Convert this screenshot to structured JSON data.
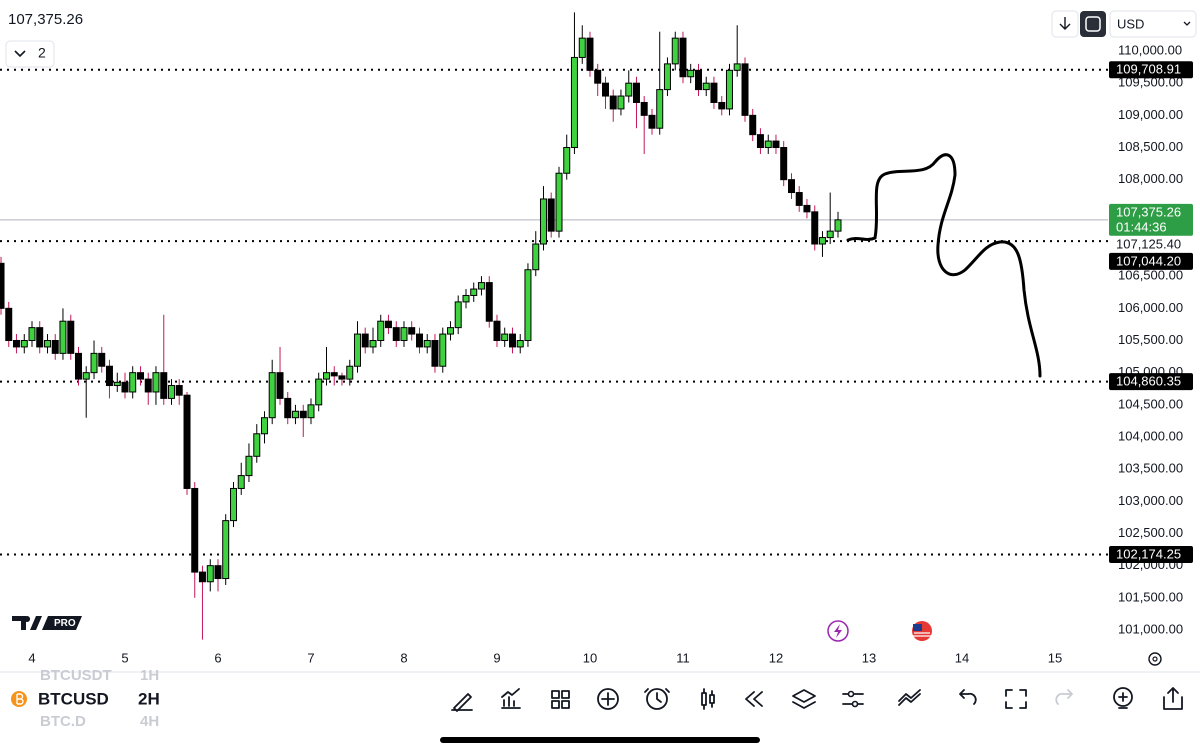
{
  "header": {
    "price": "107,375.26",
    "indicator_count": "2",
    "currency": "USD"
  },
  "logo": {
    "badge": "PRO"
  },
  "toolbar": {
    "symbol": "BTCUSD",
    "interval": "2H",
    "prev_symbol": "BTCUSDT",
    "prev_interval": "1H",
    "next_symbol": "BTC.D",
    "next_interval": "4H"
  },
  "chart_data": {
    "type": "candlestick",
    "x": [
      3.667,
      3.75,
      3.833,
      3.917,
      4,
      4.083,
      4.167,
      4.25,
      4.333,
      4.417,
      4.5,
      4.583,
      4.667,
      4.75,
      4.833,
      4.917,
      5,
      5.083,
      5.167,
      5.25,
      5.333,
      5.417,
      5.5,
      5.583,
      5.667,
      5.75,
      5.833,
      5.917,
      6,
      6.083,
      6.167,
      6.25,
      6.333,
      6.417,
      6.5,
      6.583,
      6.667,
      6.75,
      6.833,
      6.917,
      7,
      7.083,
      7.167,
      7.25,
      7.333,
      7.417,
      7.5,
      7.583,
      7.667,
      7.75,
      7.833,
      7.917,
      8,
      8.083,
      8.167,
      8.25,
      8.333,
      8.417,
      8.5,
      8.583,
      8.667,
      8.75,
      8.833,
      8.917,
      9,
      9.083,
      9.167,
      9.25,
      9.333,
      9.417,
      9.5,
      9.583,
      9.667,
      9.75,
      9.833,
      9.917,
      10,
      10.083,
      10.167,
      10.25,
      10.333,
      10.417,
      10.5,
      10.583,
      10.667,
      10.75,
      10.833,
      10.917,
      11,
      11.083,
      11.167,
      11.25,
      11.333,
      11.417,
      11.5,
      11.583,
      11.667,
      11.75,
      11.833,
      11.917,
      12,
      12.083,
      12.167,
      12.25,
      12.333,
      12.417,
      12.5,
      12.583,
      12.667
    ],
    "open": [
      106700,
      106000,
      105500,
      105400,
      105500,
      105700,
      105400,
      105500,
      105300,
      105800,
      105300,
      104900,
      105000,
      105300,
      105100,
      104800,
      104850,
      104700,
      105000,
      104900,
      104700,
      105000,
      104600,
      104800,
      104650,
      103200,
      101900,
      101750,
      102000,
      101800,
      102700,
      103200,
      103400,
      103700,
      104050,
      104300,
      105000,
      104600,
      104300,
      104400,
      104300,
      104500,
      104900,
      105000,
      104950,
      104900,
      105100,
      105600,
      105400,
      105500,
      105800,
      105700,
      105500,
      105700,
      105600,
      105400,
      105500,
      105100,
      105600,
      105700,
      106100,
      106200,
      106300,
      106400,
      105800,
      105500,
      105600,
      105400,
      105500,
      106600,
      107000,
      107700,
      107200,
      108100,
      108500,
      109900,
      110200,
      109700,
      109500,
      109300,
      109100,
      109300,
      109500,
      109200,
      109000,
      108800,
      109400,
      109800,
      110200,
      109600,
      109700,
      109400,
      109500,
      109200,
      109100,
      109700,
      109800,
      109000,
      108700,
      108500,
      108600,
      108500,
      108000,
      107800,
      107600,
      107500,
      107000,
      107100,
      107200
    ],
    "high": [
      106800,
      106100,
      105600,
      105600,
      105800,
      105800,
      105600,
      105600,
      106000,
      105900,
      105400,
      105100,
      105500,
      105400,
      105200,
      105000,
      105000,
      105100,
      105100,
      105000,
      105100,
      105900,
      104900,
      104900,
      104700,
      103300,
      102000,
      102100,
      102100,
      102800,
      103300,
      103600,
      103900,
      104200,
      104400,
      105200,
      105400,
      104700,
      104500,
      104500,
      104600,
      105000,
      105400,
      105100,
      105000,
      105200,
      105800,
      105700,
      105700,
      105900,
      105900,
      105800,
      105800,
      105800,
      105700,
      105600,
      105600,
      105700,
      105800,
      106200,
      106300,
      106400,
      106500,
      106500,
      105900,
      105700,
      105700,
      105600,
      106700,
      107200,
      107900,
      107800,
      108200,
      108700,
      110600,
      110400,
      110300,
      109800,
      109600,
      109400,
      109400,
      109700,
      109600,
      109300,
      109100,
      110300,
      109900,
      110300,
      110300,
      109800,
      109800,
      109600,
      109600,
      109300,
      109800,
      110400,
      109900,
      109100,
      108800,
      108700,
      108700,
      108600,
      108100,
      107900,
      107700,
      107600,
      107200,
      107800,
      107500
    ],
    "low": [
      105900,
      105400,
      105300,
      105300,
      105400,
      105300,
      105300,
      105200,
      105200,
      105200,
      104800,
      104300,
      104900,
      105000,
      104600,
      104700,
      104600,
      104600,
      104800,
      104500,
      104500,
      104500,
      104500,
      104500,
      103100,
      101500,
      100850,
      101600,
      101600,
      101700,
      102600,
      103100,
      103300,
      103600,
      103900,
      104200,
      104500,
      104200,
      104200,
      104000,
      104200,
      104400,
      104800,
      104800,
      104800,
      104800,
      105000,
      105300,
      105300,
      105400,
      105600,
      105400,
      105400,
      105500,
      105300,
      105300,
      105000,
      105000,
      105500,
      105600,
      106000,
      106100,
      106200,
      105700,
      105400,
      105400,
      105300,
      105300,
      105400,
      106500,
      106900,
      107100,
      107100,
      108000,
      108400,
      109800,
      109600,
      109300,
      109100,
      108900,
      109000,
      109200,
      108800,
      108400,
      108700,
      108700,
      109300,
      109700,
      109500,
      109500,
      109300,
      109300,
      109100,
      109000,
      109000,
      109600,
      108900,
      108600,
      108400,
      108400,
      108400,
      107900,
      107700,
      107500,
      107400,
      106900,
      106800,
      107000,
      107100
    ],
    "close": [
      106000,
      105500,
      105400,
      105500,
      105700,
      105400,
      105500,
      105300,
      105800,
      105300,
      104900,
      105000,
      105300,
      105100,
      104800,
      104850,
      104700,
      105000,
      104900,
      104700,
      105000,
      104600,
      104800,
      104650,
      103200,
      101900,
      101750,
      102000,
      101800,
      102700,
      103200,
      103400,
      103700,
      104050,
      104300,
      105000,
      104600,
      104300,
      104400,
      104300,
      104500,
      104900,
      105000,
      104950,
      104900,
      105100,
      105600,
      105400,
      105500,
      105800,
      105700,
      105500,
      105700,
      105600,
      105400,
      105500,
      105100,
      105600,
      105700,
      106100,
      106200,
      106300,
      106400,
      105800,
      105500,
      105600,
      105400,
      105500,
      106600,
      107000,
      107700,
      107200,
      108100,
      108500,
      109900,
      110200,
      109700,
      109500,
      109300,
      109100,
      109300,
      109500,
      109200,
      109000,
      108800,
      109400,
      109800,
      110200,
      109600,
      109700,
      109400,
      109500,
      109200,
      109100,
      109700,
      109800,
      109000,
      108700,
      108500,
      108600,
      108500,
      108000,
      107800,
      107600,
      107500,
      107000,
      107100,
      107200,
      107375.26
    ],
    "up_color": "#3fd13f",
    "down_color": "#000000",
    "xlim": [
      3.656,
      15.538
    ],
    "xticks": [
      4,
      5,
      6,
      7,
      8,
      9,
      10,
      11,
      12,
      13,
      14,
      15
    ],
    "ylim": [
      100720,
      110793
    ],
    "yticks": [
      {
        "value": 101000,
        "label": "101,000.00"
      },
      {
        "value": 101500,
        "label": "101,500.00"
      },
      {
        "value": 102000,
        "label": "102,000.00"
      },
      {
        "value": 102500,
        "label": "102,500.00"
      },
      {
        "value": 103000,
        "label": "103,000.00"
      },
      {
        "value": 103500,
        "label": "103,500.00"
      },
      {
        "value": 104000,
        "label": "104,000.00"
      },
      {
        "value": 104500,
        "label": "104,500.00"
      },
      {
        "value": 105000,
        "label": "105,000.00"
      },
      {
        "value": 105500,
        "label": "105,500.00"
      },
      {
        "value": 106000,
        "label": "106,000.00"
      },
      {
        "value": 106500,
        "label": "106,500.00"
      },
      {
        "value": 107000,
        "label": "107,000.00"
      },
      {
        "value": 107500,
        "label": "107,500.00"
      },
      {
        "value": 108000,
        "label": "108,000.00"
      },
      {
        "value": 108500,
        "label": "108,500.00"
      },
      {
        "value": 109000,
        "label": "109,000.00"
      },
      {
        "value": 109500,
        "label": "109,500.00"
      },
      {
        "value": 110000,
        "label": "110,000.00"
      }
    ],
    "price_lines": [
      {
        "value": 109708.91,
        "label": "109,708.91"
      },
      {
        "value": 107044.2,
        "label": "107,044.20"
      },
      {
        "value": 104860.35,
        "label": "104,860.35"
      },
      {
        "value": 102174.25,
        "label": "102,174.25"
      }
    ],
    "last_price": {
      "value": 107375.26,
      "label": "107,375.26",
      "countdown": "01:44:36",
      "color": "#2e9e46"
    },
    "marker": {
      "value": 107125.4,
      "label": "107,125.40"
    }
  }
}
